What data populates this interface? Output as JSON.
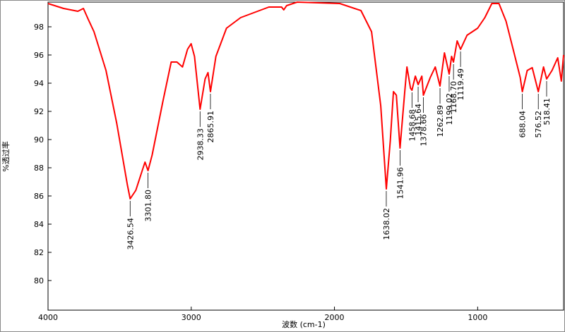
{
  "chart_data": {
    "type": "line",
    "x_label": "波数 (cm-1)",
    "y_label": "%透过率",
    "xlim": [
      4000,
      400
    ],
    "ylim": [
      77.9,
      99.75
    ],
    "xticks": [
      4000,
      3000,
      2000,
      1000
    ],
    "yticks": [
      80,
      82,
      84,
      86,
      88,
      90,
      92,
      94,
      96,
      98
    ],
    "grid": false,
    "series": [
      {
        "color": "#ff0000",
        "x": [
          4000,
          3891,
          3792,
          3753,
          3718,
          3679,
          3595,
          3520,
          3446,
          3426.54,
          3387,
          3347,
          3323,
          3301.8,
          3273,
          3199,
          3140,
          3100,
          3061,
          3026,
          3001,
          2977,
          2938.33,
          2903,
          2883,
          2865.91,
          2828,
          2754,
          2655,
          2458,
          2369,
          2354,
          2334,
          2260,
          1963,
          1815,
          1741,
          1677,
          1638.02,
          1610,
          1588,
          1568,
          1541.96,
          1509,
          1494,
          1469,
          1458.68,
          1435,
          1415.64,
          1390,
          1378.66,
          1331,
          1296,
          1262.89,
          1232,
          1199.02,
          1182,
          1168.7,
          1143,
          1119.49,
          1074,
          1000,
          950,
          901,
          851,
          802,
          752,
          703,
          688.04,
          654,
          619,
          576.52,
          540,
          518.41,
          481,
          441,
          416,
          400
        ],
        "values": [
          99.65,
          99.3,
          99.1,
          99.3,
          98.5,
          97.65,
          94.9,
          91.15,
          86.8,
          85.8,
          86.4,
          87.65,
          88.4,
          87.8,
          88.9,
          92.65,
          95.5,
          95.5,
          95.15,
          96.4,
          96.8,
          95.9,
          92.15,
          94.3,
          94.75,
          93.4,
          95.9,
          97.9,
          98.65,
          99.4,
          99.4,
          99.2,
          99.5,
          99.75,
          99.65,
          99.15,
          97.65,
          92.4,
          86.5,
          89.9,
          93.4,
          93.15,
          89.4,
          93.4,
          95.15,
          93.65,
          93.5,
          94.5,
          93.9,
          94.5,
          93.15,
          94.4,
          95.15,
          93.8,
          96.15,
          94.65,
          95.9,
          95.5,
          97.0,
          96.4,
          97.4,
          97.9,
          98.65,
          99.65,
          99.65,
          98.4,
          96.4,
          94.4,
          93.4,
          94.9,
          95.1,
          93.4,
          95.15,
          94.3,
          94.9,
          95.8,
          94.15,
          96.0
        ]
      }
    ],
    "annotations": [
      {
        "x": 3426.54,
        "y": 85.8,
        "label": "3426.54"
      },
      {
        "x": 3301.8,
        "y": 87.8,
        "label": "3301.80"
      },
      {
        "x": 2938.33,
        "y": 92.15,
        "label": "2938.33"
      },
      {
        "x": 2865.91,
        "y": 93.4,
        "label": "2865.91"
      },
      {
        "x": 1638.02,
        "y": 86.5,
        "label": "1638.02"
      },
      {
        "x": 1541.96,
        "y": 89.4,
        "label": "1541.96"
      },
      {
        "x": 1458.68,
        "y": 93.5,
        "label": "1458.68"
      },
      {
        "x": 1415.64,
        "y": 93.9,
        "label": "1415.64"
      },
      {
        "x": 1378.66,
        "y": 93.15,
        "label": "1378.66"
      },
      {
        "x": 1262.89,
        "y": 93.8,
        "label": "1262.89"
      },
      {
        "x": 1199.02,
        "y": 94.65,
        "label": "1199.02"
      },
      {
        "x": 1168.7,
        "y": 95.5,
        "label": "1168.70"
      },
      {
        "x": 1119.49,
        "y": 96.4,
        "label": "1119.49"
      },
      {
        "x": 688.04,
        "y": 93.4,
        "label": "688.04"
      },
      {
        "x": 576.52,
        "y": 93.4,
        "label": "576.52"
      },
      {
        "x": 518.41,
        "y": 94.3,
        "label": "518.41"
      }
    ]
  }
}
